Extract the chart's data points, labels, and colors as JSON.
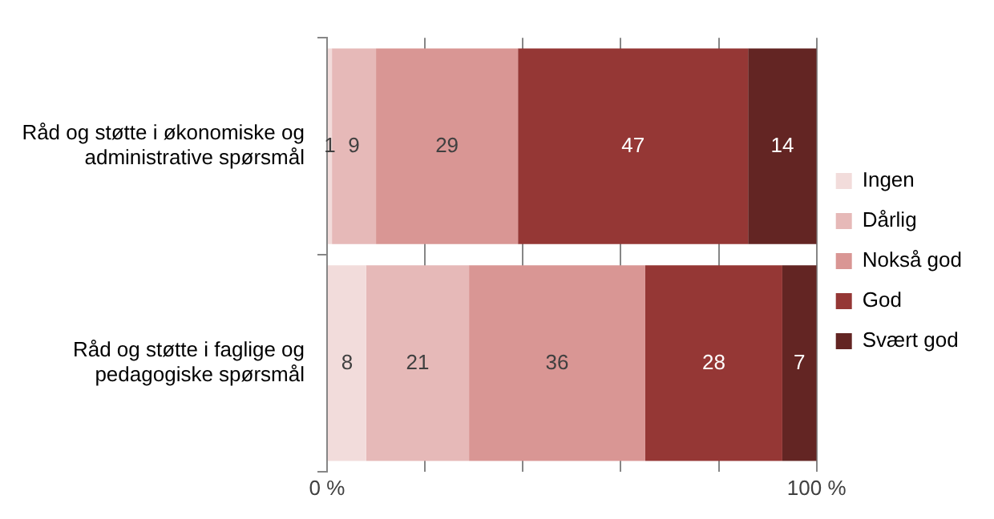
{
  "chart_data": {
    "type": "bar",
    "orientation": "horizontal",
    "stacked": true,
    "data_labels": true,
    "grid": "x",
    "legend": "right",
    "categories": [
      "Råd og støtte i økonomiske og administrative spørsmål",
      "Råd og støtte i faglige og pedagogiske spørsmål"
    ],
    "series": [
      {
        "name": "Ingen",
        "color": "#f2dcdb",
        "values": [
          1,
          8
        ]
      },
      {
        "name": "Dårlig",
        "color": "#e6b9b8",
        "values": [
          9,
          21
        ]
      },
      {
        "name": "Nokså god",
        "color": "#d99694",
        "values": [
          29,
          36
        ]
      },
      {
        "name": "God",
        "color": "#953735",
        "values": [
          47,
          28
        ]
      },
      {
        "name": "Svært god",
        "color": "#632523",
        "values": [
          14,
          7
        ]
      }
    ],
    "xlim": [
      0,
      100
    ],
    "xticks": [
      {
        "value": 0,
        "label": "0 %"
      },
      {
        "value": 20,
        "label": null
      },
      {
        "value": 40,
        "label": null
      },
      {
        "value": 60,
        "label": null
      },
      {
        "value": 80,
        "label": null
      },
      {
        "value": 100,
        "label": "100 %"
      }
    ]
  }
}
